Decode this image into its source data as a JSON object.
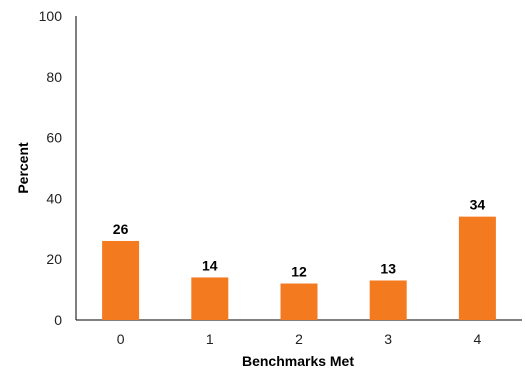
{
  "chart_data": {
    "type": "bar",
    "title": "",
    "xlabel": "Benchmarks Met",
    "ylabel": "Percent",
    "categories": [
      "0",
      "1",
      "2",
      "3",
      "4"
    ],
    "values": [
      26,
      14,
      12,
      13,
      34
    ],
    "ylim": [
      0,
      100
    ],
    "yticks": [
      "0",
      "20",
      "40",
      "60",
      "80",
      "100"
    ],
    "grid": false,
    "legend": "none",
    "bar_color": "#f47a20"
  }
}
